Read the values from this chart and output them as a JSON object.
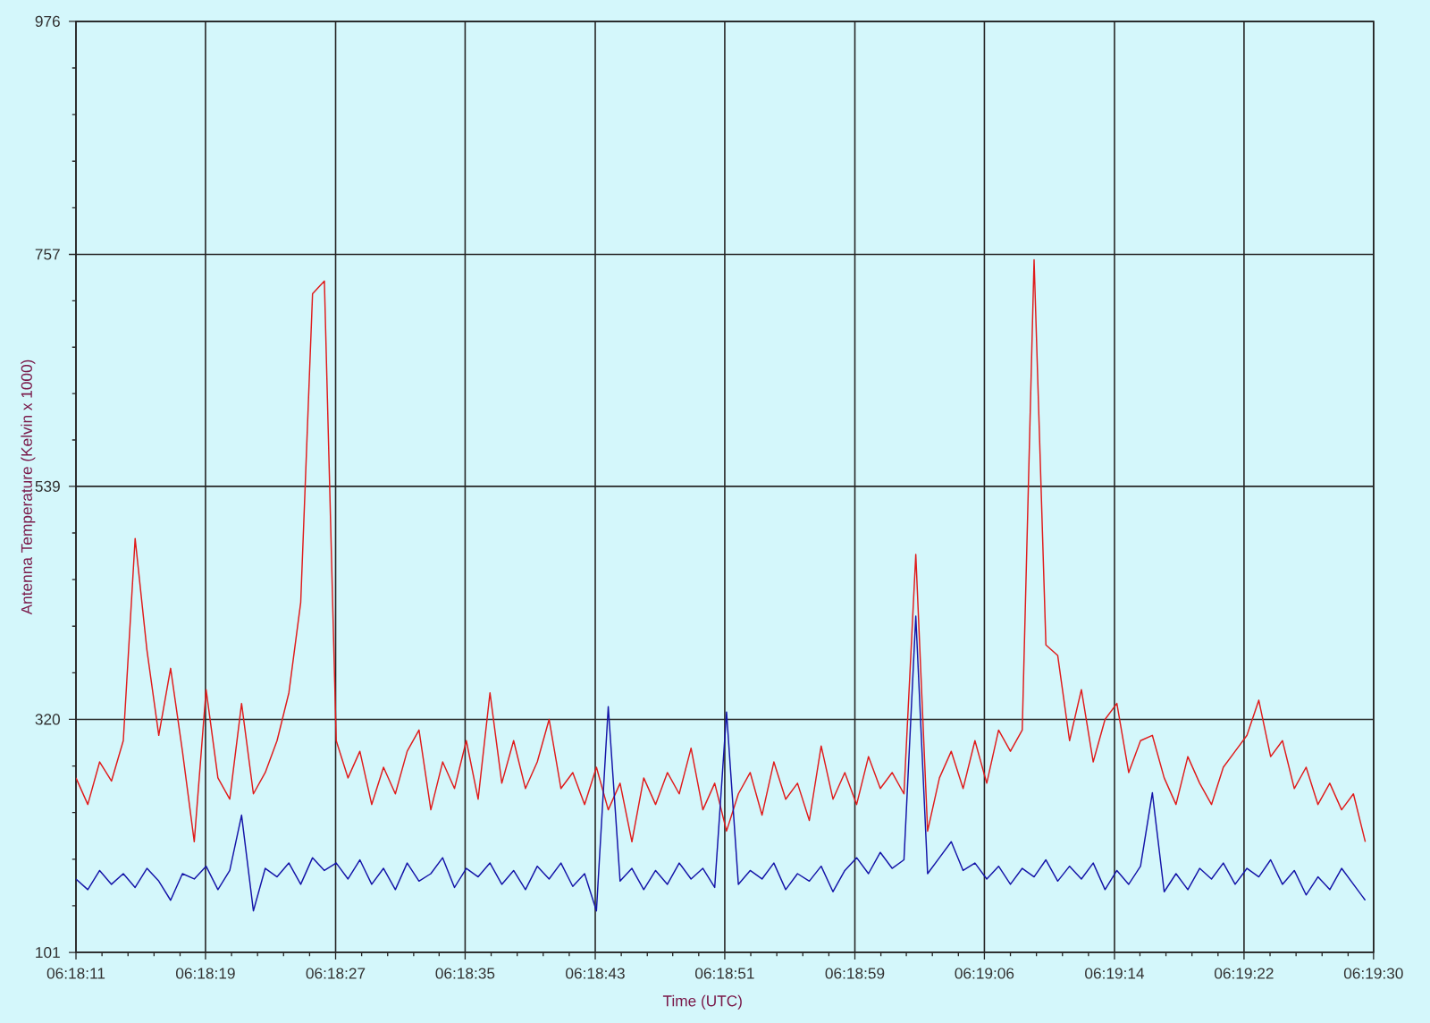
{
  "chart_data": {
    "type": "line",
    "xlabel": "Time (UTC)",
    "ylabel": "Antenna Temperature (Kelvin x 1000)",
    "grid": true,
    "xlim": [
      6.3031,
      6.32504
    ],
    "ylim": [
      101,
      976
    ],
    "xticks": [
      {
        "value": 6.3031,
        "label": "06:18:11"
      },
      {
        "value": 6.30354,
        "label": null
      },
      {
        "value": 6.30398,
        "label": null
      },
      {
        "value": 6.30442,
        "label": null
      },
      {
        "value": 6.30486,
        "label": null
      },
      {
        "value": 6.30529,
        "label": "06:18:19"
      },
      {
        "value": 6.30573,
        "label": null
      },
      {
        "value": 6.30617,
        "label": null
      },
      {
        "value": 6.30661,
        "label": null
      },
      {
        "value": 6.30705,
        "label": null
      },
      {
        "value": 6.30749,
        "label": "06:18:27"
      },
      {
        "value": 6.30793,
        "label": null
      },
      {
        "value": 6.30837,
        "label": null
      },
      {
        "value": 6.30881,
        "label": null
      },
      {
        "value": 6.30924,
        "label": null
      },
      {
        "value": 6.30968,
        "label": "06:18:35"
      },
      {
        "value": 6.31012,
        "label": null
      },
      {
        "value": 6.31056,
        "label": null
      },
      {
        "value": 6.311,
        "label": null
      },
      {
        "value": 6.31144,
        "label": null
      },
      {
        "value": 6.31188,
        "label": "06:18:43"
      },
      {
        "value": 6.31232,
        "label": null
      },
      {
        "value": 6.31276,
        "label": null
      },
      {
        "value": 6.31319,
        "label": null
      },
      {
        "value": 6.31363,
        "label": null
      },
      {
        "value": 6.31407,
        "label": "06:18:51"
      },
      {
        "value": 6.31451,
        "label": null
      },
      {
        "value": 6.31495,
        "label": null
      },
      {
        "value": 6.31539,
        "label": null
      },
      {
        "value": 6.31583,
        "label": null
      },
      {
        "value": 6.31627,
        "label": "06:18:59"
      },
      {
        "value": 6.31671,
        "label": null
      },
      {
        "value": 6.31714,
        "label": null
      },
      {
        "value": 6.31758,
        "label": null
      },
      {
        "value": 6.31802,
        "label": null
      },
      {
        "value": 6.31846,
        "label": "06:19:06"
      },
      {
        "value": 6.3189,
        "label": null
      },
      {
        "value": 6.31934,
        "label": null
      },
      {
        "value": 6.31978,
        "label": null
      },
      {
        "value": 6.32022,
        "label": null
      },
      {
        "value": 6.32066,
        "label": "06:19:14"
      },
      {
        "value": 6.32109,
        "label": null
      },
      {
        "value": 6.32153,
        "label": null
      },
      {
        "value": 6.32197,
        "label": null
      },
      {
        "value": 6.32241,
        "label": null
      },
      {
        "value": 6.32285,
        "label": "06:19:22"
      },
      {
        "value": 6.32329,
        "label": null
      },
      {
        "value": 6.32373,
        "label": null
      },
      {
        "value": 6.32417,
        "label": null
      },
      {
        "value": 6.32461,
        "label": null
      },
      {
        "value": 6.32504,
        "label": "06:19:30"
      }
    ],
    "yticks": [
      101,
      {
        "value": 144.8,
        "label": null
      },
      {
        "value": 188.6,
        "label": null
      },
      {
        "value": 232.4,
        "label": null
      },
      {
        "value": 276.2,
        "label": null
      },
      320,
      {
        "value": 363.8,
        "label": null
      },
      {
        "value": 407.6,
        "label": null
      },
      {
        "value": 451.4,
        "label": null
      },
      {
        "value": 495.2,
        "label": null
      },
      539,
      {
        "value": 582.6,
        "label": null
      },
      {
        "value": 626.2,
        "label": null
      },
      {
        "value": 669.8,
        "label": null
      },
      {
        "value": 713.4,
        "label": null
      },
      757,
      {
        "value": 800.8,
        "label": null
      },
      {
        "value": 844.6,
        "label": null
      },
      {
        "value": 888.4,
        "label": null
      },
      {
        "value": 932.2,
        "label": null
      },
      976
    ],
    "x": [
      6.3031,
      6.3033,
      6.3035,
      6.3037,
      6.3039,
      6.3041,
      6.3043,
      6.3045,
      6.3047,
      6.3049,
      6.3051,
      6.3053,
      6.3055,
      6.3057,
      6.3059,
      6.3061,
      6.3063,
      6.3065,
      6.3067,
      6.3069,
      6.3071,
      6.3073,
      6.3075,
      6.3077,
      6.3079,
      6.3081,
      6.3083,
      6.3085,
      6.3087,
      6.3089,
      6.3091,
      6.3093,
      6.3095,
      6.3097,
      6.3099,
      6.3101,
      6.3103,
      6.3105,
      6.3107,
      6.3109,
      6.3111,
      6.3113,
      6.3115,
      6.3117,
      6.3119,
      6.3121,
      6.3123,
      6.3125,
      6.3127,
      6.3129,
      6.3131,
      6.3133,
      6.3135,
      6.3137,
      6.3139,
      6.3141,
      6.3143,
      6.3145,
      6.3147,
      6.3149,
      6.3151,
      6.3153,
      6.3155,
      6.3157,
      6.3159,
      6.3161,
      6.3163,
      6.3165,
      6.3167,
      6.3169,
      6.3171,
      6.3173,
      6.3175,
      6.3177,
      6.3179,
      6.3181,
      6.3183,
      6.3185,
      6.3187,
      6.3189,
      6.3191,
      6.3193,
      6.3195,
      6.3197,
      6.3199,
      6.3201,
      6.3203,
      6.3205,
      6.3207,
      6.3209,
      6.3211,
      6.3213,
      6.3215,
      6.3217,
      6.3219,
      6.3221,
      6.3223,
      6.3225,
      6.3227,
      6.3229,
      6.3231,
      6.3233,
      6.3235,
      6.3237,
      6.3239,
      6.3241,
      6.3243,
      6.3245,
      6.3247,
      6.3249
    ],
    "series": [
      {
        "color": "#e01b1b",
        "values": [
          265,
          240,
          280,
          262,
          300,
          490,
          385,
          305,
          368,
          290,
          205,
          348,
          265,
          245,
          335,
          250,
          270,
          300,
          345,
          430,
          720,
          732,
          300,
          265,
          290,
          240,
          275,
          250,
          290,
          310,
          235,
          280,
          255,
          300,
          245,
          345,
          260,
          300,
          255,
          280,
          320,
          255,
          270,
          240,
          275,
          235,
          260,
          205,
          265,
          240,
          270,
          250,
          293,
          235,
          260,
          215,
          250,
          270,
          230,
          280,
          245,
          260,
          225,
          295,
          245,
          270,
          240,
          285,
          255,
          270,
          250,
          475,
          215,
          265,
          290,
          255,
          300,
          260,
          310,
          290,
          310,
          752,
          390,
          380,
          300,
          348,
          280,
          320,
          335,
          270,
          300,
          305,
          265,
          240,
          285,
          260,
          240,
          275,
          290,
          305,
          338,
          285,
          300,
          255,
          275,
          240,
          260,
          235,
          250,
          205
        ]
      },
      {
        "color": "#1414a8",
        "values": [
          170,
          160,
          178,
          165,
          175,
          162,
          180,
          168,
          150,
          175,
          170,
          182,
          160,
          178,
          230,
          140,
          180,
          172,
          185,
          165,
          190,
          178,
          185,
          170,
          188,
          165,
          180,
          160,
          185,
          168,
          175,
          190,
          162,
          180,
          172,
          185,
          165,
          178,
          160,
          182,
          170,
          185,
          163,
          175,
          140,
          332,
          168,
          180,
          160,
          178,
          165,
          185,
          170,
          180,
          162,
          327,
          165,
          178,
          170,
          185,
          160,
          175,
          168,
          182,
          158,
          178,
          190,
          175,
          195,
          180,
          188,
          417,
          175,
          190,
          205,
          178,
          185,
          170,
          182,
          165,
          180,
          172,
          188,
          168,
          182,
          170,
          185,
          160,
          178,
          165,
          182,
          251,
          158,
          175,
          160,
          180,
          170,
          185,
          165,
          180,
          172,
          188,
          165,
          178,
          155,
          172,
          160,
          180,
          165,
          150
        ]
      }
    ]
  }
}
